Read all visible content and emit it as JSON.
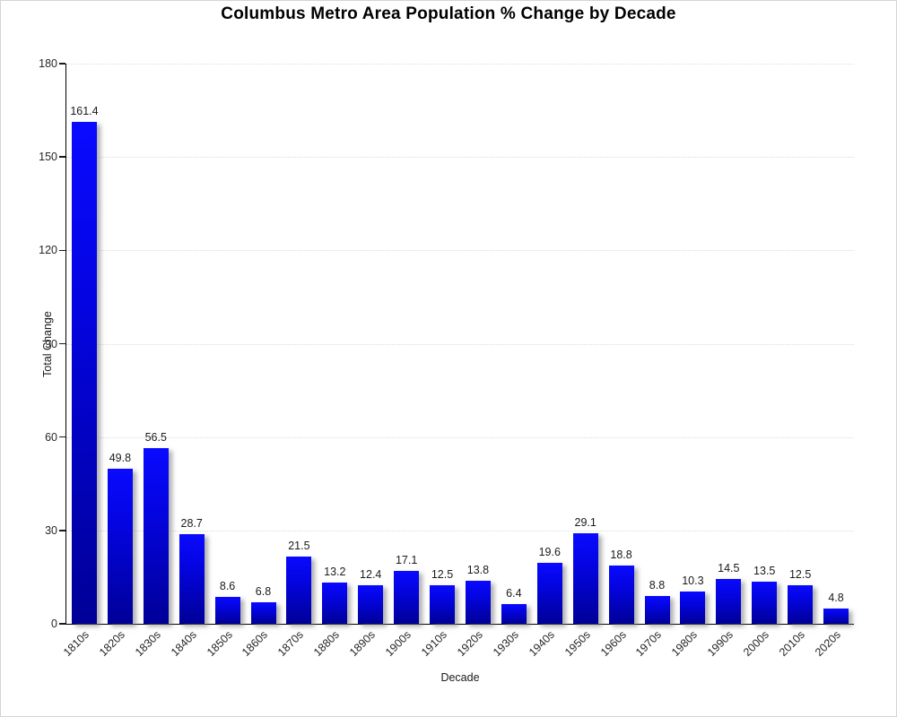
{
  "chart_data": {
    "type": "bar",
    "title": "Columbus Metro Area Population % Change by Decade",
    "xlabel": "Decade",
    "ylabel": "Total Change",
    "categories": [
      "1810s",
      "1820s",
      "1830s",
      "1840s",
      "1850s",
      "1860s",
      "1870s",
      "1880s",
      "1890s",
      "1900s",
      "1910s",
      "1920s",
      "1930s",
      "1940s",
      "1950s",
      "1960s",
      "1970s",
      "1980s",
      "1990s",
      "2000s",
      "2010s",
      "2020s"
    ],
    "values": [
      161.4,
      49.8,
      56.5,
      28.7,
      8.6,
      6.8,
      21.5,
      13.2,
      12.4,
      17.1,
      12.5,
      13.8,
      6.4,
      19.6,
      29.1,
      18.8,
      8.8,
      10.3,
      14.5,
      13.5,
      12.5,
      4.8
    ],
    "value_labels": [
      "161.4",
      "49.8",
      "56.5",
      "28.7",
      "8.6",
      "6.8",
      "21.5",
      "13.2",
      "12.4",
      "17.1",
      "12.5",
      "13.8",
      "6.4",
      "19.6",
      "29.1",
      "18.8",
      "8.8",
      "10.3",
      "14.5",
      "13.5",
      "12.5",
      "4.8"
    ],
    "ylim": [
      0,
      180
    ],
    "yticks": [
      0,
      30,
      60,
      90,
      120,
      150,
      180
    ],
    "grid": "horizontal-dotted",
    "legend": "none",
    "colors": {
      "bar_top": "#0a0aff",
      "bar_bottom": "#000097",
      "gridline": "#dcdcdc",
      "axis": "#000000",
      "text": "#1a1a1a",
      "frame_border": "#d4d4d4",
      "background": "#ffffff"
    }
  }
}
